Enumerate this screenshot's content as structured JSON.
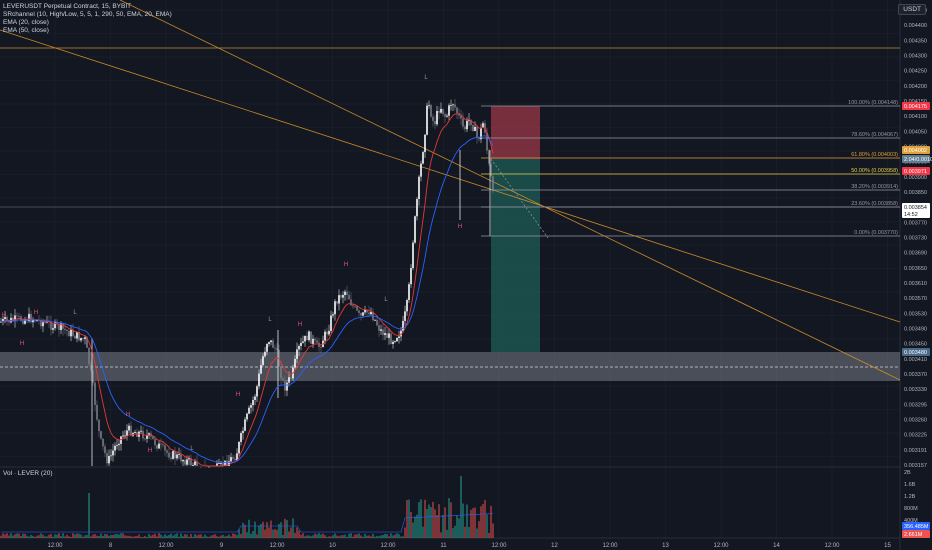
{
  "header": {
    "symbol_line": "LEVERUSDT Perpetual Contract, 15, BYBIT",
    "indicators": [
      "SRchannel (10, High/Low, 5, 5, 1, 290, 50, EMA, 20, EMA)",
      "EMA (20, close)",
      "EMA (50, close)"
    ],
    "currency_badge": "USDT"
  },
  "volume_pane": {
    "legend": "Vol · LEVER (20)",
    "axis_labels": [
      "2B",
      "1.6B",
      "1.2B",
      "800M",
      "400M"
    ],
    "last_volume_labels": [
      "356.485M",
      "2.661M"
    ]
  },
  "price_axis": {
    "labels": [
      "0.004500",
      "0.004400",
      "0.004350",
      "0.004300",
      "0.004250",
      "0.004200",
      "0.004150",
      "0.004100",
      "0.004050",
      "0.004000",
      "0.003950",
      "0.003900",
      "0.003850",
      "0.003810",
      "0.003770",
      "0.003730",
      "0.003690",
      "0.003650",
      "0.003610",
      "0.003570",
      "0.003530",
      "0.003490",
      "0.003450",
      "0.003410",
      "0.003370",
      "0.003330",
      "0.003295",
      "0.003260",
      "0.003225",
      "0.003191",
      "0.003157"
    ],
    "badges": [
      {
        "text": "0.004175",
        "color": "#f23645"
      },
      {
        "text": "0.004002",
        "color": "#e0a13c"
      },
      {
        "text": "2.04/0.0010",
        "color": "#5f7d8f"
      },
      {
        "text": "0.003971",
        "color": "#f23645"
      },
      {
        "text": "0.003854",
        "color": "#d1d4dc"
      },
      {
        "text": "14:52",
        "color": "#d1d4dc"
      },
      {
        "text": "0.003480",
        "color": "#4b6a8a"
      }
    ]
  },
  "time_axis": {
    "labels": [
      "12:00",
      "8",
      "12:00",
      "9",
      "12:00",
      "10",
      "12:00",
      "11",
      "12:00",
      "12",
      "12:00",
      "13",
      "12:00",
      "14",
      "12:00",
      "15"
    ]
  },
  "fib_levels": [
    {
      "label": "100.00% (0.004148)",
      "color": "#9598a1"
    },
    {
      "label": "78.60% (0.004067)",
      "color": "#9598a1"
    },
    {
      "label": "61.80% (0.004003)",
      "color": "#e0a13c"
    },
    {
      "label": "50.00% (0.003958)",
      "color": "#e6d24a"
    },
    {
      "label": "38.20% (0.003914)",
      "color": "#9598a1"
    },
    {
      "label": "23.60% (0.003858)",
      "color": "#9598a1"
    },
    {
      "label": "0.00% (0.003770)",
      "color": "#9598a1"
    }
  ],
  "pivot_markers": [
    "H",
    "H",
    "L",
    "H",
    "H",
    "L",
    "H",
    "H",
    "L",
    "H",
    "H",
    "L",
    "H",
    "L"
  ],
  "colors": {
    "background": "#131722",
    "grid": "#1e222d",
    "up": "#ffffff",
    "down": "#787b86",
    "ema20": "#e53935",
    "ema50": "#2962ff",
    "trendline": "#c98a2a",
    "stop_zone": "#a33a48",
    "target_zone": "#1d5d57",
    "sr_zone": "#787b86"
  }
}
